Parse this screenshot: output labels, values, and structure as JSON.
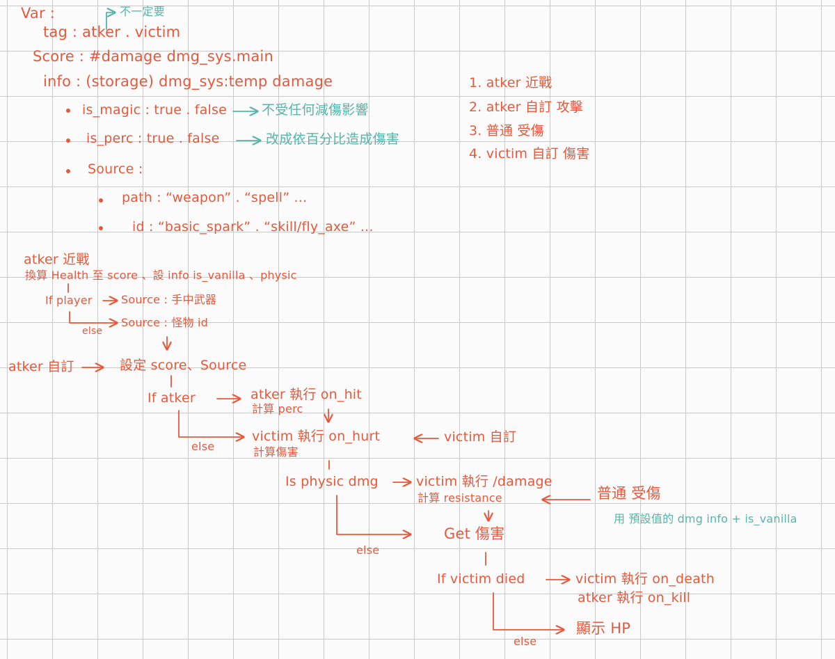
{
  "colors": {
    "ink": "#e8583b",
    "teal": "#56b5a8",
    "grid": "#c9c9c9",
    "paper": "#fbfbfb"
  },
  "header": {
    "var": "Var :",
    "not_fixed": "不一定要",
    "tag": "tag : atker . victim",
    "score": "Score : #damage dmg_sys.main",
    "info": "info : (storage) dmg_sys:temp damage"
  },
  "info_items": [
    {
      "label": "is_magic : true . false",
      "note": "不受任何減傷影響"
    },
    {
      "label": "is_perc : true . false",
      "note": "改成依百分比造成傷害"
    },
    {
      "label": "Source :"
    }
  ],
  "source_items": [
    {
      "label": "path : “weapon” . “spell” ..."
    },
    {
      "label": "id : “basic_spark” . “skill/fly_axe” ..."
    }
  ],
  "cases": [
    {
      "label": "1. atker 近戰"
    },
    {
      "label": "2. atker 自訂 攻擊"
    },
    {
      "label": "3. 普通 受傷"
    },
    {
      "label": "4. victim 自訂 傷害"
    }
  ],
  "flow": {
    "melee_title": "atker 近戰",
    "melee_desc": "換算 Health 至 score 、設 info is_vanilla 、physic",
    "if_player": "If player",
    "source_weapon": "Source : 手中武器",
    "else1": "else",
    "source_mob": "Source : 怪物 id",
    "atker_custom": "atker 自訂",
    "set_score": "設定 score、Source",
    "if_atker": "If atker",
    "on_hit": "atker 執行 on_hit",
    "calc_perc": "計算 perc",
    "on_hurt": "victim 執行 on_hurt",
    "victim_custom": "victim 自訂",
    "else2": "else",
    "calc_damage": "計算傷害",
    "is_physic": "Is physic dmg",
    "exec_damage": "victim 執行 /damage",
    "calc_resistance": "計算 resistance",
    "normal_hurt": "普通 受傷",
    "default_info": "用 預設值的 dmg info + is_vanilla",
    "get_damage": "Get 傷害",
    "else3": "else",
    "if_died": "If victim died",
    "on_death": "victim 執行 on_death",
    "on_kill": "atker 執行 on_kill",
    "show_hp": "顯示 HP",
    "else4": "else"
  }
}
